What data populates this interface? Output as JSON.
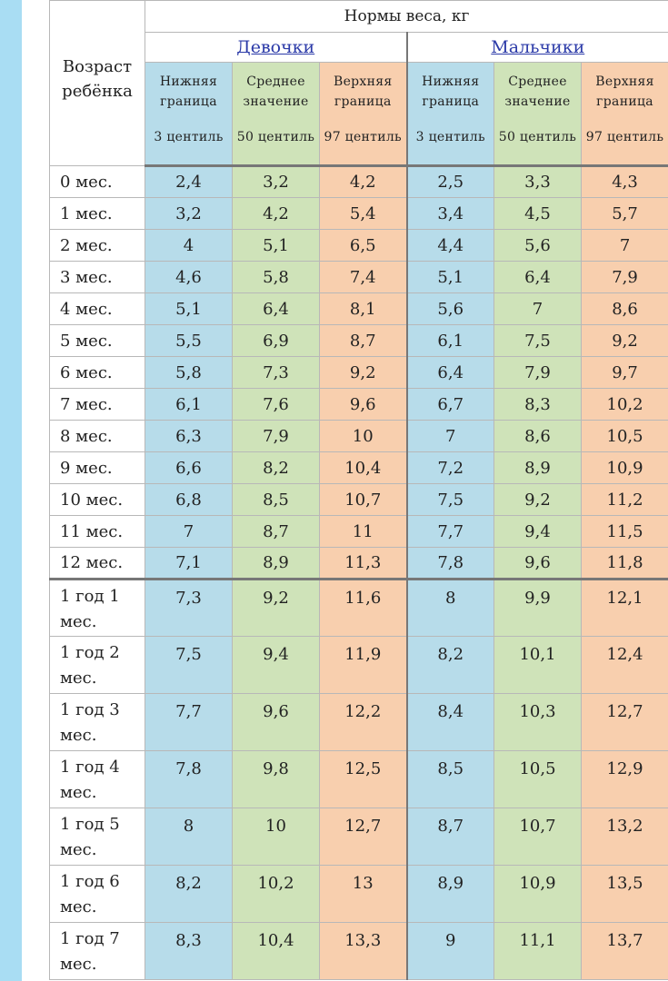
{
  "header": {
    "title": "Нормы веса, кг",
    "age_label": "Возраст ребёнка",
    "groups": [
      "Девочки",
      "Мальчики"
    ],
    "sub_columns": [
      {
        "label": "Нижняя граница",
        "percentile": "3 центиль"
      },
      {
        "label": "Среднее значение",
        "percentile": "50 центиль"
      },
      {
        "label": "Верхняя граница",
        "percentile": "97 центиль"
      }
    ]
  },
  "rows": [
    {
      "age": "0 мес.",
      "girls": [
        "2,4",
        "3,2",
        "4,2"
      ],
      "boys": [
        "2,5",
        "3,3",
        "4,3"
      ]
    },
    {
      "age": "1 мес.",
      "girls": [
        "3,2",
        "4,2",
        "5,4"
      ],
      "boys": [
        "3,4",
        "4,5",
        "5,7"
      ]
    },
    {
      "age": "2 мес.",
      "girls": [
        "4",
        "5,1",
        "6,5"
      ],
      "boys": [
        "4,4",
        "5,6",
        "7"
      ]
    },
    {
      "age": "3 мес.",
      "girls": [
        "4,6",
        "5,8",
        "7,4"
      ],
      "boys": [
        "5,1",
        "6,4",
        "7,9"
      ]
    },
    {
      "age": "4 мес.",
      "girls": [
        "5,1",
        "6,4",
        "8,1"
      ],
      "boys": [
        "5,6",
        "7",
        "8,6"
      ]
    },
    {
      "age": "5 мес.",
      "girls": [
        "5,5",
        "6,9",
        "8,7"
      ],
      "boys": [
        "6,1",
        "7,5",
        "9,2"
      ]
    },
    {
      "age": "6 мес.",
      "girls": [
        "5,8",
        "7,3",
        "9,2"
      ],
      "boys": [
        "6,4",
        "7,9",
        "9,7"
      ]
    },
    {
      "age": "7 мес.",
      "girls": [
        "6,1",
        "7,6",
        "9,6"
      ],
      "boys": [
        "6,7",
        "8,3",
        "10,2"
      ]
    },
    {
      "age": "8 мес.",
      "girls": [
        "6,3",
        "7,9",
        "10"
      ],
      "boys": [
        "7",
        "8,6",
        "10,5"
      ]
    },
    {
      "age": "9 мес.",
      "girls": [
        "6,6",
        "8,2",
        "10,4"
      ],
      "boys": [
        "7,2",
        "8,9",
        "10,9"
      ]
    },
    {
      "age": "10 мес.",
      "girls": [
        "6,8",
        "8,5",
        "10,7"
      ],
      "boys": [
        "7,5",
        "9,2",
        "11,2"
      ]
    },
    {
      "age": "11 мес.",
      "girls": [
        "7",
        "8,7",
        "11"
      ],
      "boys": [
        "7,7",
        "9,4",
        "11,5"
      ]
    },
    {
      "age": "12 мес.",
      "girls": [
        "7,1",
        "8,9",
        "11,3"
      ],
      "boys": [
        "7,8",
        "9,6",
        "11,8"
      ]
    },
    {
      "age": "1 год 1 мес.",
      "girls": [
        "7,3",
        "9,2",
        "11,6"
      ],
      "boys": [
        "8",
        "9,9",
        "12,1"
      ]
    },
    {
      "age": "1 год 2 мес.",
      "girls": [
        "7,5",
        "9,4",
        "11,9"
      ],
      "boys": [
        "8,2",
        "10,1",
        "12,4"
      ]
    },
    {
      "age": "1 год 3 мес.",
      "girls": [
        "7,7",
        "9,6",
        "12,2"
      ],
      "boys": [
        "8,4",
        "10,3",
        "12,7"
      ]
    },
    {
      "age": "1 год 4 мес.",
      "girls": [
        "7,8",
        "9,8",
        "12,5"
      ],
      "boys": [
        "8,5",
        "10,5",
        "12,9"
      ]
    },
    {
      "age": "1 год 5 мес.",
      "girls": [
        "8",
        "10",
        "12,7"
      ],
      "boys": [
        "8,7",
        "10,7",
        "13,2"
      ]
    },
    {
      "age": "1 год 6 мес.",
      "girls": [
        "8,2",
        "10,2",
        "13"
      ],
      "boys": [
        "8,9",
        "10,9",
        "13,5"
      ]
    },
    {
      "age": "1 год 7 мес.",
      "girls": [
        "8,3",
        "10,4",
        "13,3"
      ],
      "boys": [
        "9",
        "11,1",
        "13,7"
      ]
    }
  ],
  "colors": {
    "lower": "#b7dcea",
    "mean": "#cfe3b9",
    "upper": "#f8cfae",
    "side_strip": "#a9ddf3",
    "group_link": "#2b3aa8"
  }
}
